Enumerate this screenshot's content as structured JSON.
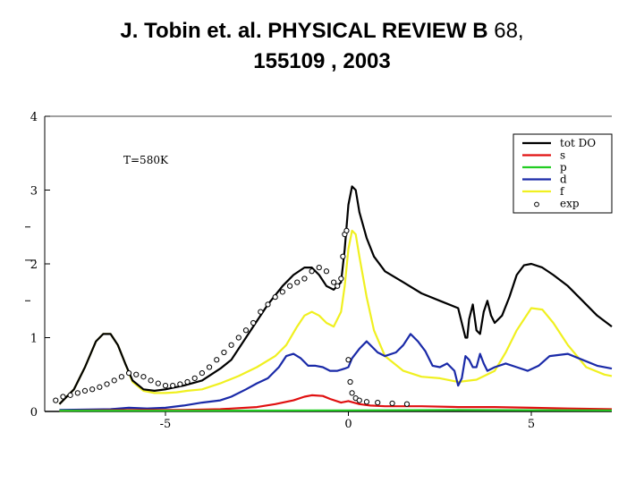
{
  "slide": {
    "title_line1_bold": "J. Tobin et. al. PHYSICAL REVIEW B",
    "title_line1_plain": " 68,",
    "title_line2_bold": "155109 , 2003"
  },
  "chart_data": {
    "type": "line",
    "title": "",
    "xlabel": "",
    "ylabel": "",
    "xlim": [
      -8.3,
      7.2
    ],
    "ylim": [
      0,
      4
    ],
    "x_ticks": [
      -5,
      0,
      5
    ],
    "x_tick_labels": [
      "-5",
      "0",
      "5"
    ],
    "y_ticks": [
      0,
      1,
      2,
      3,
      4
    ],
    "y_tick_labels": [
      "0",
      "1",
      "2",
      "3",
      "4"
    ],
    "annotation": "T=580K",
    "legend_position": "top-right",
    "legend_entries": [
      "tot DO",
      "s",
      "p",
      "d",
      "f",
      "exp"
    ],
    "series": [
      {
        "name": "tot DO",
        "color": "#000000",
        "kind": "line",
        "x": [
          -7.9,
          -7.5,
          -7.2,
          -6.9,
          -6.7,
          -6.5,
          -6.3,
          -6.1,
          -5.9,
          -5.6,
          -5.3,
          -5.0,
          -4.8,
          -4.5,
          -4.0,
          -3.5,
          -3.2,
          -3.0,
          -2.6,
          -2.2,
          -1.8,
          -1.5,
          -1.2,
          -1.0,
          -0.8,
          -0.6,
          -0.4,
          -0.2,
          -0.1,
          0.0,
          0.1,
          0.2,
          0.3,
          0.5,
          0.7,
          1.0,
          1.5,
          2.0,
          2.5,
          3.0,
          3.1,
          3.2,
          3.25,
          3.3,
          3.4,
          3.5,
          3.6,
          3.7,
          3.8,
          3.9,
          4.0,
          4.2,
          4.4,
          4.6,
          4.8,
          5.0,
          5.3,
          5.6,
          6.0,
          6.4,
          6.8,
          7.2
        ],
        "y": [
          0.1,
          0.3,
          0.6,
          0.95,
          1.05,
          1.05,
          0.9,
          0.65,
          0.42,
          0.3,
          0.28,
          0.3,
          0.32,
          0.35,
          0.42,
          0.58,
          0.7,
          0.85,
          1.15,
          1.45,
          1.7,
          1.85,
          1.95,
          1.95,
          1.85,
          1.7,
          1.65,
          1.75,
          2.2,
          2.8,
          3.05,
          3.0,
          2.7,
          2.35,
          2.1,
          1.9,
          1.75,
          1.6,
          1.5,
          1.4,
          1.2,
          1.0,
          1.0,
          1.25,
          1.45,
          1.1,
          1.05,
          1.35,
          1.5,
          1.3,
          1.2,
          1.3,
          1.55,
          1.85,
          1.98,
          2.0,
          1.95,
          1.85,
          1.7,
          1.5,
          1.3,
          1.15
        ]
      },
      {
        "name": "s",
        "color": "#e01010",
        "kind": "line",
        "x": [
          -7.9,
          -6.0,
          -4.5,
          -3.5,
          -2.5,
          -2.0,
          -1.5,
          -1.2,
          -1.0,
          -0.7,
          -0.5,
          -0.2,
          0.0,
          0.3,
          0.6,
          1.0,
          2.0,
          3.0,
          4.0,
          5.0,
          6.0,
          7.2
        ],
        "y": [
          0.01,
          0.02,
          0.02,
          0.03,
          0.06,
          0.1,
          0.15,
          0.2,
          0.22,
          0.21,
          0.17,
          0.12,
          0.14,
          0.1,
          0.08,
          0.07,
          0.07,
          0.06,
          0.06,
          0.05,
          0.04,
          0.03
        ]
      },
      {
        "name": "p",
        "color": "#22cc22",
        "kind": "line",
        "x": [
          -7.9,
          -4.0,
          0.0,
          3.0,
          7.2
        ],
        "y": [
          0.01,
          0.01,
          0.015,
          0.02,
          0.015
        ]
      },
      {
        "name": "d",
        "color": "#1a2aa8",
        "kind": "line",
        "x": [
          -7.9,
          -6.5,
          -6.0,
          -5.5,
          -5.0,
          -4.5,
          -4.0,
          -3.5,
          -3.2,
          -2.8,
          -2.5,
          -2.2,
          -1.9,
          -1.7,
          -1.5,
          -1.3,
          -1.1,
          -0.9,
          -0.7,
          -0.5,
          -0.3,
          -0.1,
          0.0,
          0.1,
          0.3,
          0.5,
          0.8,
          1.0,
          1.3,
          1.5,
          1.7,
          1.9,
          2.1,
          2.3,
          2.5,
          2.7,
          2.9,
          3.0,
          3.1,
          3.2,
          3.3,
          3.4,
          3.5,
          3.6,
          3.7,
          3.8,
          4.0,
          4.3,
          4.6,
          4.9,
          5.2,
          5.5,
          6.0,
          6.4,
          6.8,
          7.2
        ],
        "y": [
          0.02,
          0.03,
          0.05,
          0.04,
          0.05,
          0.08,
          0.12,
          0.15,
          0.2,
          0.3,
          0.38,
          0.45,
          0.6,
          0.75,
          0.78,
          0.72,
          0.62,
          0.62,
          0.6,
          0.55,
          0.55,
          0.58,
          0.6,
          0.72,
          0.85,
          0.95,
          0.8,
          0.75,
          0.8,
          0.9,
          1.05,
          0.95,
          0.82,
          0.62,
          0.6,
          0.65,
          0.55,
          0.35,
          0.45,
          0.75,
          0.7,
          0.6,
          0.6,
          0.78,
          0.65,
          0.55,
          0.6,
          0.65,
          0.6,
          0.55,
          0.62,
          0.75,
          0.78,
          0.7,
          0.62,
          0.58
        ]
      },
      {
        "name": "f",
        "color": "#f0f020",
        "kind": "line",
        "x": [
          -7.9,
          -7.5,
          -7.2,
          -6.9,
          -6.7,
          -6.5,
          -6.3,
          -6.1,
          -5.9,
          -5.6,
          -5.3,
          -5.0,
          -4.7,
          -4.4,
          -4.0,
          -3.5,
          -3.0,
          -2.5,
          -2.0,
          -1.7,
          -1.4,
          -1.2,
          -1.0,
          -0.8,
          -0.6,
          -0.4,
          -0.2,
          -0.1,
          0.0,
          0.1,
          0.2,
          0.3,
          0.5,
          0.7,
          1.0,
          1.5,
          2.0,
          2.5,
          3.0,
          3.5,
          4.0,
          4.3,
          4.6,
          5.0,
          5.3,
          5.6,
          6.0,
          6.5,
          7.0,
          7.2
        ],
        "y": [
          0.1,
          0.3,
          0.6,
          0.95,
          1.05,
          1.05,
          0.9,
          0.65,
          0.4,
          0.28,
          0.25,
          0.25,
          0.26,
          0.28,
          0.3,
          0.38,
          0.48,
          0.6,
          0.75,
          0.9,
          1.15,
          1.3,
          1.35,
          1.3,
          1.2,
          1.15,
          1.35,
          1.7,
          2.2,
          2.45,
          2.4,
          2.1,
          1.55,
          1.1,
          0.75,
          0.55,
          0.47,
          0.45,
          0.4,
          0.43,
          0.55,
          0.8,
          1.1,
          1.4,
          1.38,
          1.2,
          0.9,
          0.6,
          0.5,
          0.48
        ]
      },
      {
        "name": "exp",
        "color": "#000000",
        "kind": "points",
        "x": [
          -8.0,
          -7.8,
          -7.6,
          -7.4,
          -7.2,
          -7.0,
          -6.8,
          -6.6,
          -6.4,
          -6.2,
          -6.0,
          -5.8,
          -5.6,
          -5.4,
          -5.2,
          -5.0,
          -4.8,
          -4.6,
          -4.4,
          -4.2,
          -4.0,
          -3.8,
          -3.6,
          -3.4,
          -3.2,
          -3.0,
          -2.8,
          -2.6,
          -2.4,
          -2.2,
          -2.0,
          -1.8,
          -1.6,
          -1.4,
          -1.2,
          -1.0,
          -0.8,
          -0.6,
          -0.4,
          -0.3,
          -0.2,
          -0.15,
          -0.1,
          -0.05,
          0.0,
          0.05,
          0.1,
          0.2,
          0.3,
          0.5,
          0.8,
          1.2,
          1.6
        ],
        "y": [
          0.15,
          0.2,
          0.22,
          0.25,
          0.28,
          0.3,
          0.33,
          0.37,
          0.42,
          0.47,
          0.52,
          0.5,
          0.47,
          0.42,
          0.38,
          0.35,
          0.35,
          0.37,
          0.4,
          0.45,
          0.52,
          0.6,
          0.7,
          0.8,
          0.9,
          1.0,
          1.1,
          1.2,
          1.35,
          1.45,
          1.55,
          1.62,
          1.7,
          1.75,
          1.8,
          1.9,
          1.95,
          1.9,
          1.75,
          1.7,
          1.8,
          2.1,
          2.4,
          2.45,
          0.7,
          0.4,
          0.25,
          0.18,
          0.15,
          0.13,
          0.12,
          0.11,
          0.1
        ]
      }
    ]
  }
}
